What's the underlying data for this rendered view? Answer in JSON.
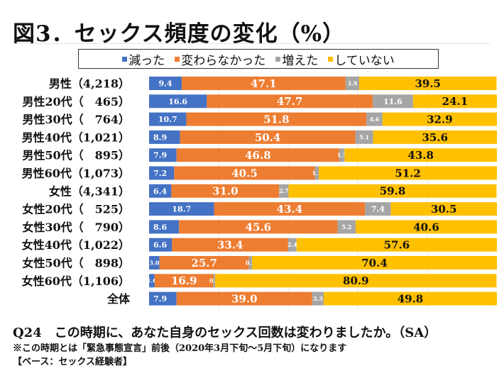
{
  "chart_data": {
    "type": "bar",
    "orientation": "horizontal",
    "stacked": true,
    "title": "図3．セックス頻度の変化（%）",
    "xlim": [
      0,
      100
    ],
    "grid": true,
    "legend_position": "top",
    "categories": [
      "男性（4,218）",
      "男性20代（　465）",
      "男性30代（　764）",
      "男性40代（1,021）",
      "男性50代（　895）",
      "男性60代（1,073）",
      "女性（4,341）",
      "女性20代（　525）",
      "女性30代（　790）",
      "女性40代（1,022）",
      "女性50代（　898）",
      "女性60代（1,106）",
      "全体"
    ],
    "series": [
      {
        "name": "減った",
        "color": "#4472C4",
        "values": [
          9.4,
          16.6,
          10.7,
          8.9,
          7.9,
          7.2,
          6.4,
          18.7,
          8.6,
          6.6,
          3.0,
          1.6,
          7.9
        ]
      },
      {
        "name": "変わらなかった",
        "color": "#ED7D31",
        "values": [
          47.1,
          47.7,
          51.8,
          50.4,
          46.8,
          40.5,
          31.0,
          43.4,
          45.6,
          33.4,
          25.7,
          16.9,
          39.0
        ]
      },
      {
        "name": "増えた",
        "color": "#A5A5A5",
        "values": [
          3.9,
          11.6,
          4.6,
          5.1,
          1.5,
          1.1,
          2.7,
          7.4,
          5.2,
          2.4,
          0.9,
          0.5,
          3.3
        ]
      },
      {
        "name": "していない",
        "color": "#FFC000",
        "values": [
          39.5,
          24.1,
          32.9,
          35.6,
          43.8,
          51.2,
          59.8,
          30.5,
          40.6,
          57.6,
          70.4,
          80.9,
          49.8
        ]
      }
    ]
  },
  "footer": {
    "question": "Q24　この時期に、あなた自身のセックス回数は変わりましたか。（SA）",
    "note": "※この時期とは「緊急事態宣言」前後（2020年3月下旬～5月下旬）になります",
    "base": "【ベース：セックス経験者】"
  }
}
